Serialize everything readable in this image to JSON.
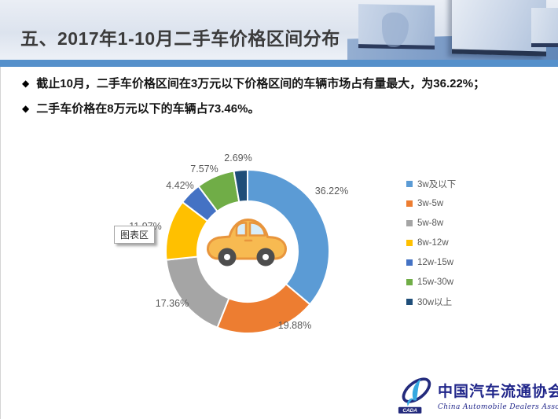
{
  "slide": {
    "title": "五、2017年1-10月二手车价格区间分布",
    "bullets": [
      "截止10月，二手车价格区间在3万元以下价格区间的车辆市场占有量最大，为36.22%；",
      "二手车价格在8万元以下的车辆占73.46%。"
    ]
  },
  "colors": {
    "accent_strip": "#5590CB",
    "label_text": "#595959"
  },
  "chart_data": {
    "type": "pie",
    "subtype": "donut",
    "title": "",
    "categories": [
      "3w及以下",
      "3w-5w",
      "5w-8w",
      "8w-12w",
      "12w-15w",
      "15w-30w",
      "30w以上"
    ],
    "values": [
      36.22,
      19.88,
      17.36,
      11.97,
      4.42,
      7.57,
      2.69
    ],
    "labels": [
      "36.22%",
      "19.88%",
      "17.36%",
      "11.97%",
      "4.42%",
      "7.57%",
      "2.69%"
    ],
    "colors": [
      "#5B9BD5",
      "#ED7D31",
      "#A5A5A5",
      "#FFC000",
      "#4472C4",
      "#70AD47",
      "#1F4E79"
    ],
    "start_angle_deg": 0,
    "direction": "clockwise",
    "legend_position": "right",
    "center_icon": "car-icon",
    "tooltip": "图表区"
  },
  "footer": {
    "logo_abbr": "CADA",
    "logo_text_cn": "中国汽车流通协会",
    "logo_text_en": "China Automobile Dealers Association"
  }
}
